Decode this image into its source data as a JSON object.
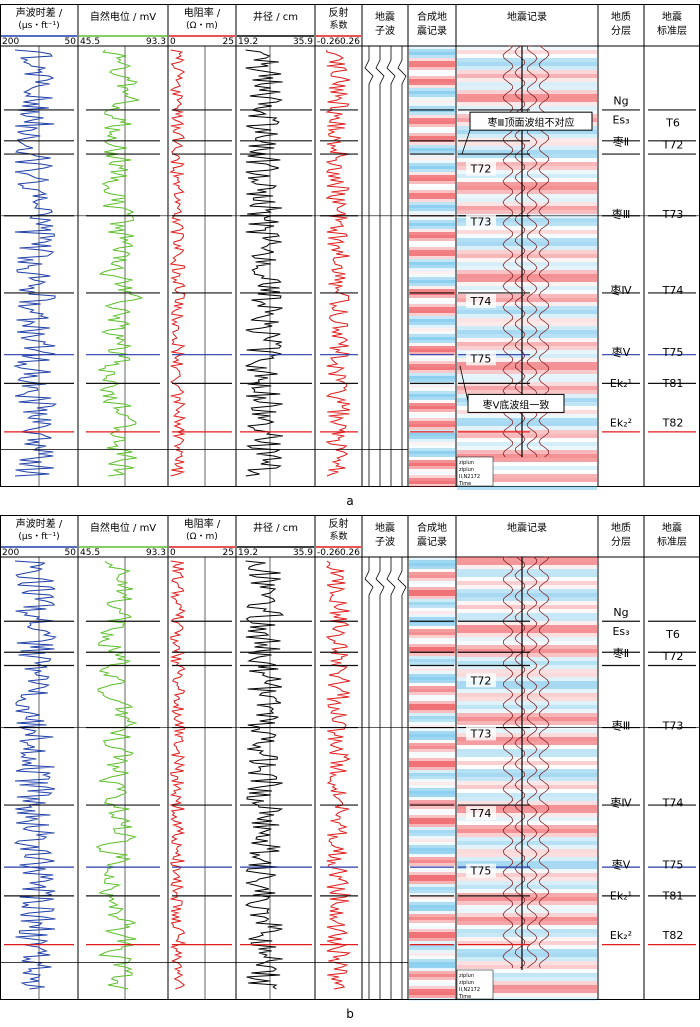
{
  "colors": {
    "sonic": "#1f3fa8",
    "sp": "#5cbf2a",
    "resistivity": "#e01b1b",
    "caliper": "#000000",
    "reflection": "#e01b1b",
    "seis_red": "#e8232a",
    "seis_blue": "#4fb6e6",
    "horizon_blue": "#2a3aa8",
    "horizon_red": "#e01b1b",
    "horizon_black": "#111111"
  },
  "headers": {
    "sonic": {
      "title_line1": "声波时差 /",
      "title_line2": "(μs・ft⁻¹)",
      "scale_left": "200",
      "scale_right": "50"
    },
    "sp": {
      "title_line1": "自然电位 / mV",
      "scale_left": "45.5",
      "scale_right": "93.3"
    },
    "res": {
      "title_line1": "电阻率 /",
      "title_line2": "(Ω・m)",
      "scale_left": "0",
      "scale_right": "25"
    },
    "cal": {
      "title_line1": "井径 / cm",
      "scale_left": "19.2",
      "scale_right": "35.9"
    },
    "refl": {
      "title_line1": "反射",
      "title_line2": "系数",
      "scale_left": "-0.26",
      "scale_right": "0.26"
    },
    "wavelet": {
      "title_line1": "地震",
      "title_line2": "子波"
    },
    "synth": {
      "title_line1": "合成地",
      "title_line2": "震记录"
    },
    "seis": {
      "title_line1": "地震记录"
    },
    "geo": {
      "title_line1": "地质",
      "title_line2": "分层"
    },
    "std": {
      "title_line1": "地震",
      "title_line2": "标准层"
    }
  },
  "panels": [
    {
      "caption": "a",
      "seismic_labels": [
        "T72",
        "T73",
        "T74",
        "T75"
      ],
      "geo_layers": [
        "Ng",
        "Es₃",
        "枣Ⅱ",
        "枣Ⅲ",
        "枣Ⅳ",
        "枣Ⅴ",
        "Ek₂¹",
        "Ek₂²"
      ],
      "std_layers": [
        "T6",
        "T72",
        "T73",
        "T74",
        "T75",
        "T81",
        "T82"
      ],
      "callout_top": "枣Ⅲ顶面波组不对应",
      "callout_bottom": "枣Ⅴ底波组一致",
      "legend": [
        "ziplun",
        "ziplun",
        "II,N2172",
        "Time"
      ]
    },
    {
      "caption": "b",
      "seismic_labels": [
        "T72",
        "T73",
        "T74",
        "T75"
      ],
      "geo_layers": [
        "Ng",
        "Es₃",
        "枣Ⅱ",
        "枣Ⅲ",
        "枣Ⅳ",
        "枣Ⅴ",
        "Ek₂¹",
        "Ek₂²"
      ],
      "std_layers": [
        "T6",
        "T72",
        "T73",
        "T74",
        "T75",
        "T81",
        "T82"
      ],
      "callout_top": "",
      "callout_bottom": "",
      "legend": [
        "ziplun",
        "ziplun",
        "II,N2172",
        "Time"
      ]
    }
  ]
}
